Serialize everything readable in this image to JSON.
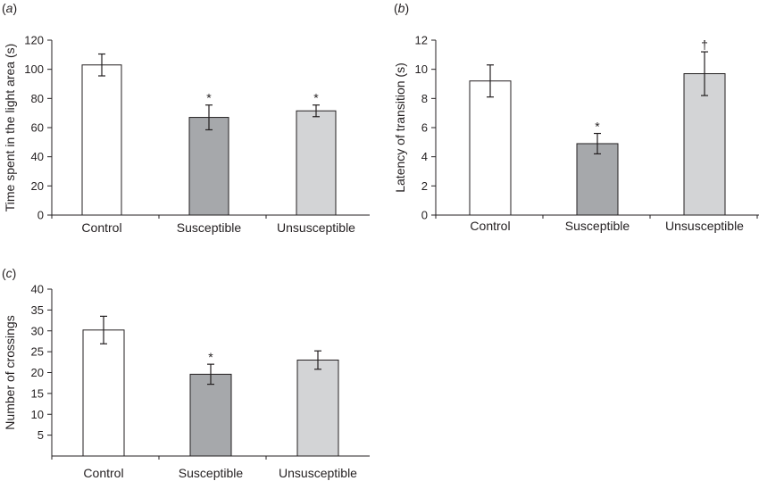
{
  "chart_data": [
    {
      "panel": "(a)",
      "panel_parts": [
        "(",
        "a",
        ")"
      ],
      "type": "bar",
      "ylabel": "Time spent in the light area (s)",
      "ylim": [
        0,
        120
      ],
      "yticks": [
        0,
        20,
        40,
        60,
        80,
        100,
        120
      ],
      "categories": [
        "Control",
        "Susceptible",
        "Unsusceptible"
      ],
      "values": [
        103,
        67,
        71.5
      ],
      "errors": [
        7.5,
        8.5,
        4
      ],
      "annotations": [
        "",
        "*",
        "*"
      ],
      "colors": [
        "#ffffff",
        "#a6a8ab",
        "#d3d4d6"
      ]
    },
    {
      "panel": "(b)",
      "panel_parts": [
        "(",
        "b",
        ")"
      ],
      "type": "bar",
      "ylabel": "Latency of transition (s)",
      "ylim": [
        0,
        12
      ],
      "yticks": [
        0,
        2,
        4,
        6,
        8,
        10,
        12
      ],
      "categories": [
        "Control",
        "Susceptible",
        "Unsusceptible"
      ],
      "values": [
        9.2,
        4.9,
        9.7
      ],
      "errors": [
        1.1,
        0.7,
        1.5
      ],
      "annotations": [
        "",
        "*",
        "†"
      ],
      "colors": [
        "#ffffff",
        "#a6a8ab",
        "#d3d4d6"
      ]
    },
    {
      "panel": "(c)",
      "panel_parts": [
        "(",
        "c",
        ")"
      ],
      "type": "bar",
      "ylabel": "Number of crossings",
      "ylim": [
        0,
        40
      ],
      "yticks": [
        5,
        10,
        15,
        20,
        25,
        30,
        35,
        40
      ],
      "categories": [
        "Control",
        "Susceptible",
        "Unsusceptible"
      ],
      "values": [
        30.2,
        19.6,
        23
      ],
      "errors": [
        3.3,
        2.4,
        2.2
      ],
      "annotations": [
        "",
        "*",
        ""
      ],
      "colors": [
        "#ffffff",
        "#a6a8ab",
        "#d3d4d6"
      ]
    }
  ]
}
